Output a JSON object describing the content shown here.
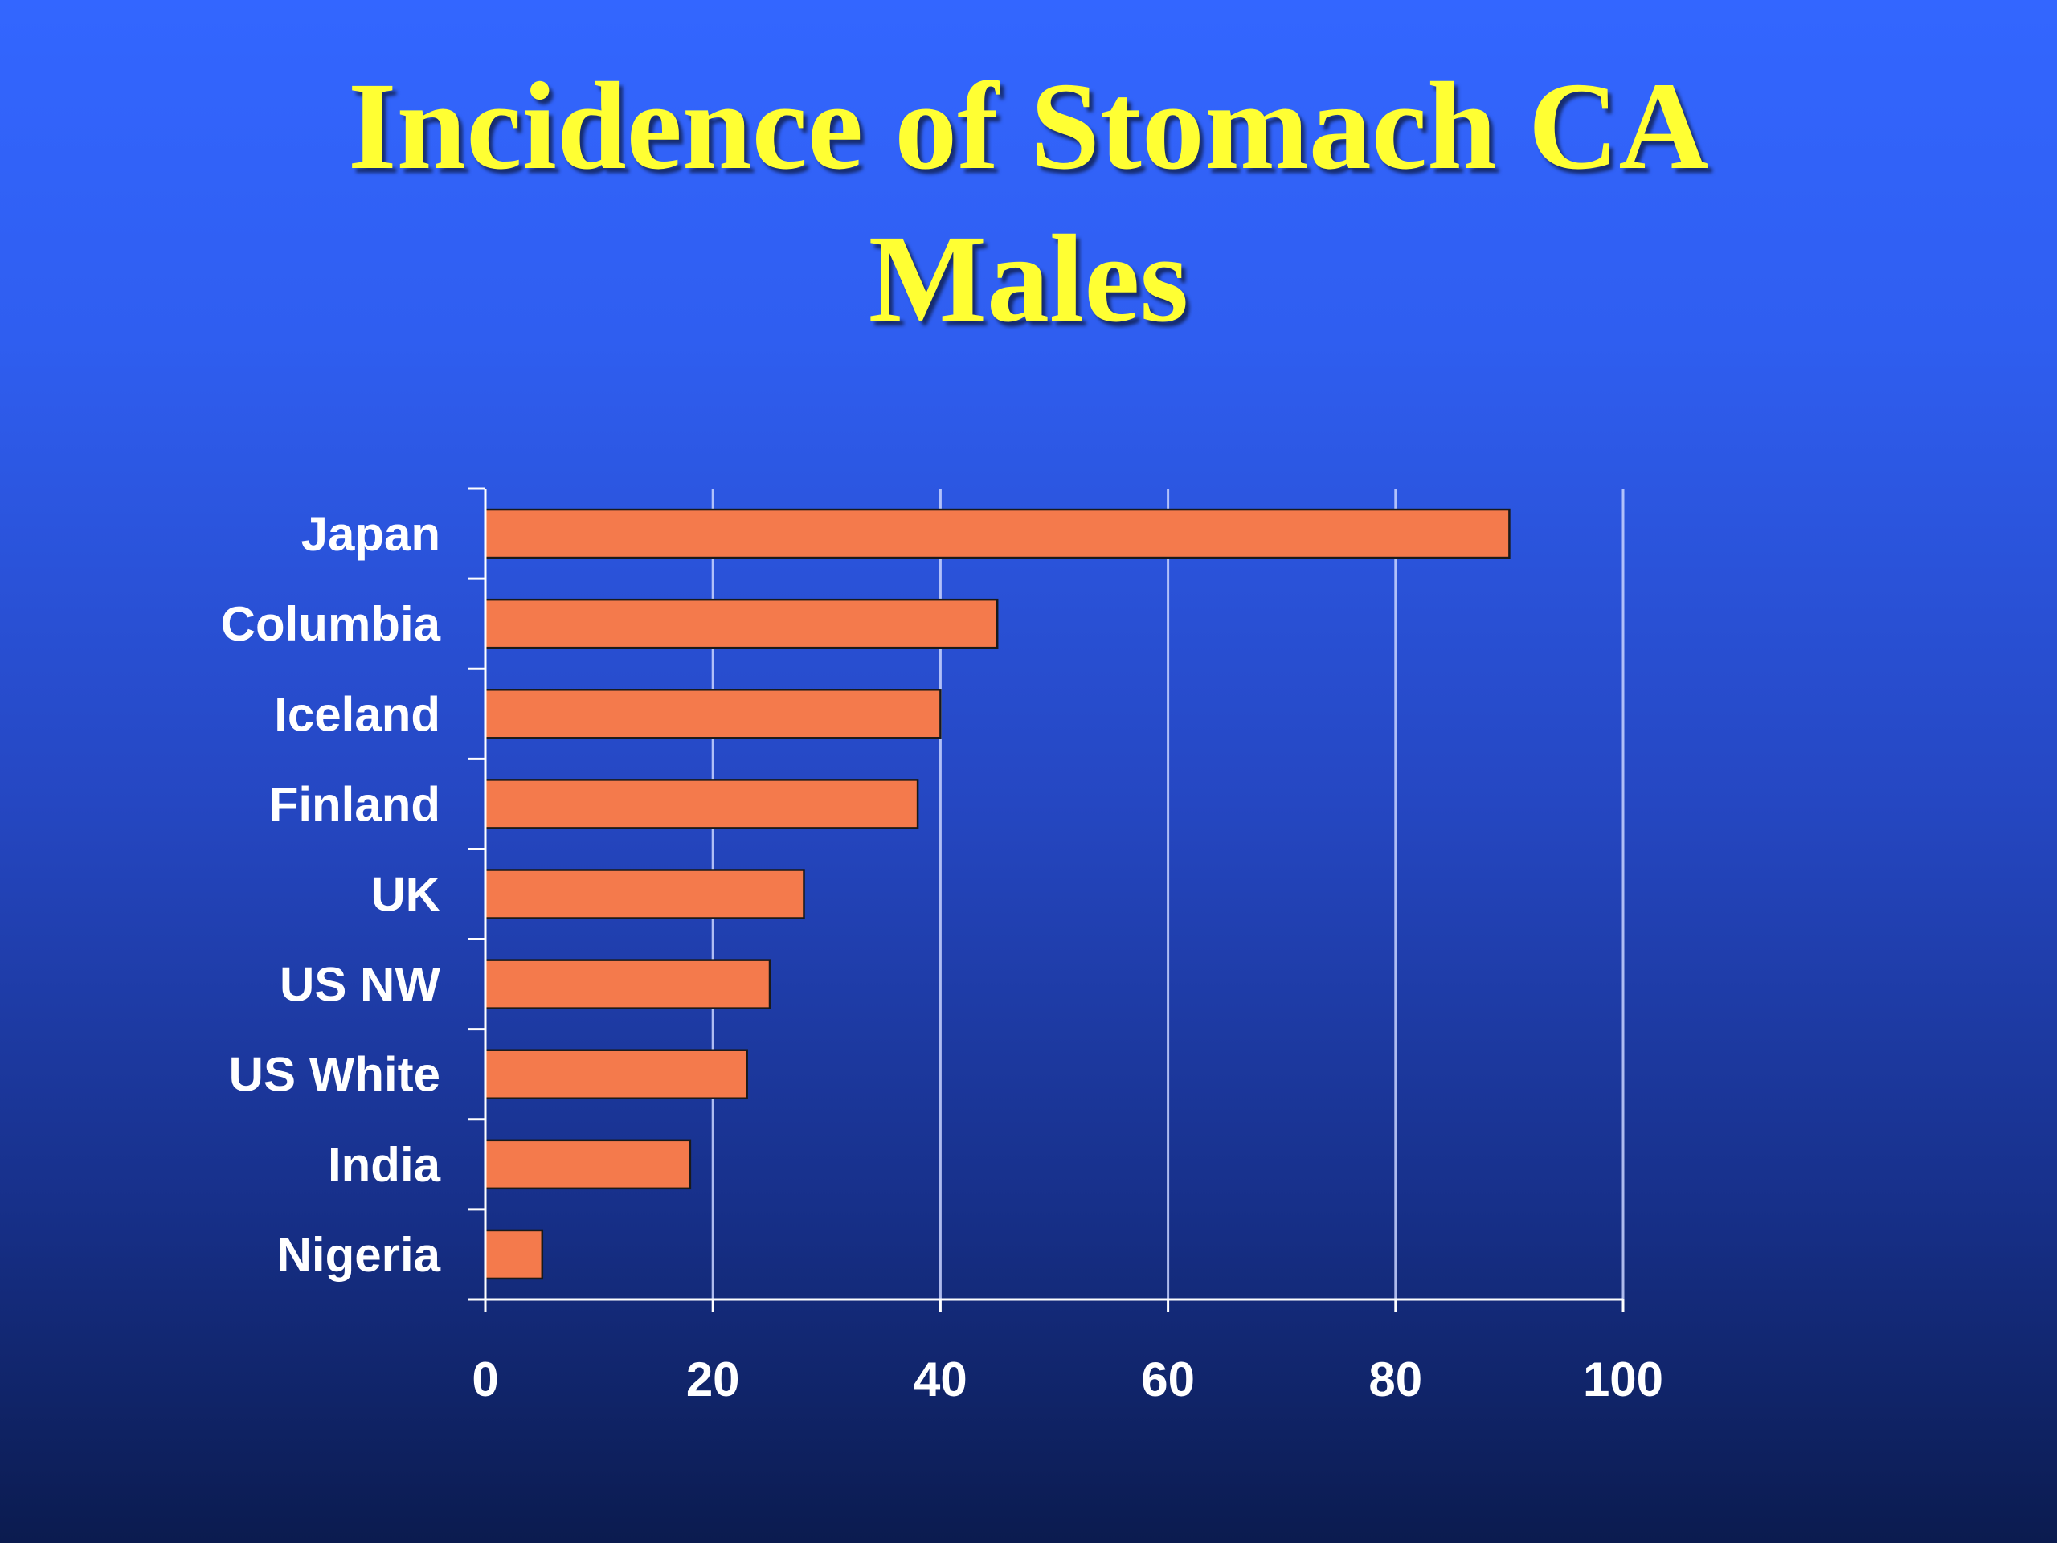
{
  "slide": {
    "title_line1": "Incidence of Stomach CA",
    "title_line2": "Males",
    "colors": {
      "title": "#ffff33",
      "bar_fill": "#f47a4c",
      "bar_stroke": "#1a1a1a",
      "axis": "#ffffff"
    }
  },
  "chart_data": {
    "type": "bar",
    "orientation": "horizontal",
    "categories": [
      "Japan",
      "Columbia",
      "Iceland",
      "Finland",
      "UK",
      "US NW",
      "US White",
      "India",
      "Nigeria"
    ],
    "values": [
      90,
      45,
      40,
      38,
      28,
      25,
      23,
      18,
      5
    ],
    "xlim": [
      0,
      100
    ],
    "xticks": [
      0,
      20,
      40,
      60,
      80,
      100
    ],
    "tick_labels": [
      "0",
      "20",
      "40",
      "60",
      "80",
      "100"
    ],
    "grid": "vertical",
    "legend": "none"
  }
}
